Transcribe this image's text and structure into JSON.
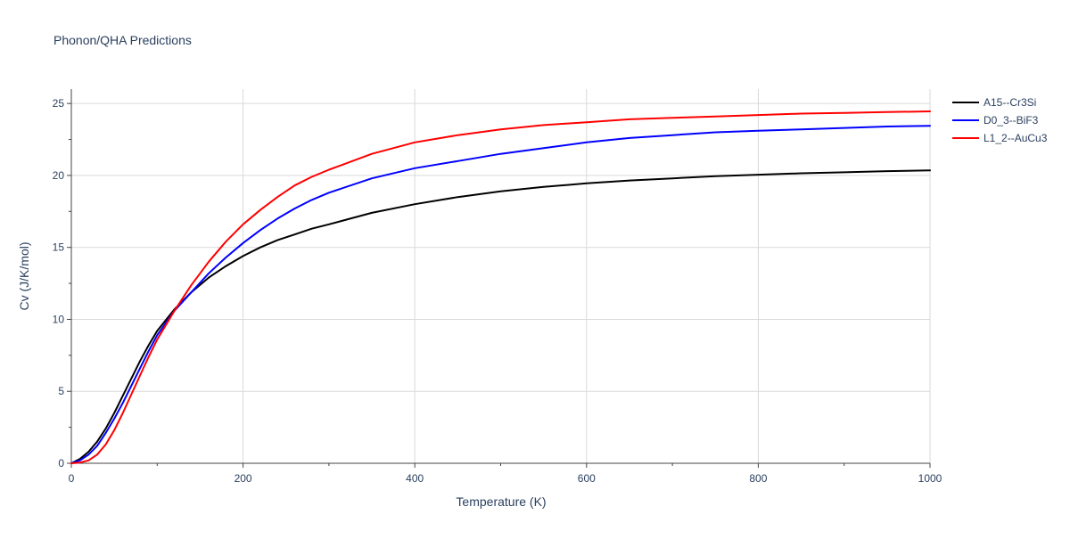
{
  "chart_data": {
    "type": "line",
    "title": "Phonon/QHA Predictions",
    "xlabel": "Temperature (K)",
    "ylabel": "Cv (J/K/mol)",
    "xlim": [
      0,
      1000
    ],
    "ylim": [
      0,
      26
    ],
    "x_ticks": [
      0,
      200,
      400,
      600,
      800,
      1000
    ],
    "y_ticks": [
      0,
      5,
      10,
      15,
      20,
      25
    ],
    "grid": true,
    "legend_position": "top-right",
    "series": [
      {
        "name": "A15--Cr3Si",
        "color": "#000000",
        "x": [
          0,
          10,
          20,
          30,
          40,
          50,
          60,
          70,
          80,
          90,
          100,
          120,
          140,
          160,
          180,
          200,
          220,
          240,
          260,
          280,
          300,
          350,
          400,
          450,
          500,
          550,
          600,
          650,
          700,
          750,
          800,
          850,
          900,
          950,
          1000
        ],
        "y": [
          0,
          0.3,
          0.8,
          1.5,
          2.4,
          3.5,
          4.7,
          5.9,
          7.1,
          8.2,
          9.2,
          10.7,
          11.9,
          12.9,
          13.7,
          14.4,
          15.0,
          15.5,
          15.9,
          16.3,
          16.6,
          17.4,
          18.0,
          18.5,
          18.9,
          19.2,
          19.45,
          19.65,
          19.8,
          19.95,
          20.05,
          20.15,
          20.22,
          20.3,
          20.35
        ]
      },
      {
        "name": "D0_3--BiF3",
        "color": "#0000ff",
        "x": [
          0,
          10,
          20,
          30,
          40,
          50,
          60,
          70,
          80,
          90,
          100,
          120,
          140,
          160,
          180,
          200,
          220,
          240,
          260,
          280,
          300,
          350,
          400,
          450,
          500,
          550,
          600,
          650,
          700,
          750,
          800,
          850,
          900,
          950,
          1000
        ],
        "y": [
          0,
          0.2,
          0.6,
          1.2,
          2.1,
          3.1,
          4.2,
          5.4,
          6.6,
          7.8,
          8.9,
          10.6,
          11.9,
          13.2,
          14.3,
          15.3,
          16.2,
          17.0,
          17.7,
          18.3,
          18.8,
          19.8,
          20.5,
          21.0,
          21.5,
          21.9,
          22.3,
          22.6,
          22.8,
          23.0,
          23.1,
          23.2,
          23.3,
          23.4,
          23.45
        ]
      },
      {
        "name": "L1_2--AuCu3",
        "color": "#ff0000",
        "x": [
          0,
          10,
          20,
          30,
          40,
          50,
          60,
          70,
          80,
          90,
          100,
          120,
          140,
          160,
          180,
          200,
          220,
          240,
          260,
          280,
          300,
          350,
          400,
          450,
          500,
          550,
          600,
          650,
          700,
          750,
          800,
          850,
          900,
          950,
          1000
        ],
        "y": [
          0,
          0.05,
          0.2,
          0.6,
          1.3,
          2.3,
          3.5,
          4.8,
          6.1,
          7.4,
          8.6,
          10.6,
          12.4,
          14.0,
          15.4,
          16.6,
          17.6,
          18.5,
          19.3,
          19.9,
          20.4,
          21.5,
          22.3,
          22.8,
          23.2,
          23.5,
          23.7,
          23.9,
          24.0,
          24.1,
          24.2,
          24.3,
          24.35,
          24.4,
          24.45
        ]
      }
    ]
  }
}
